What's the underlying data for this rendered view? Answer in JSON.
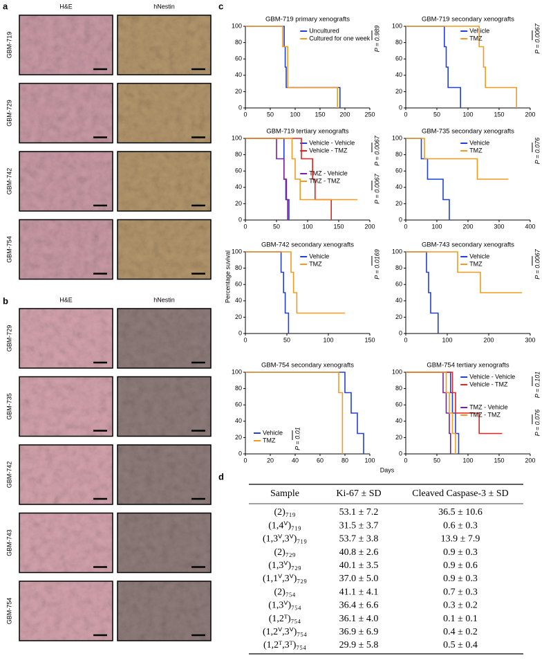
{
  "histology_a": {
    "label": "a",
    "columns": [
      "H&E",
      "hNestin"
    ],
    "rows": [
      "GBM-719",
      "GBM-729",
      "GBM-742",
      "GBM-754"
    ]
  },
  "histology_b": {
    "label": "b",
    "columns": [
      "H&E",
      "hNestin"
    ],
    "rows": [
      "GBM-729",
      "GBM-735",
      "GBM-742",
      "GBM-743",
      "GBM-754"
    ]
  },
  "panel_c_label": "c",
  "y_label": "Percentage suvival",
  "x_label": "Days",
  "chart_data": [
    {
      "type": "step",
      "title": "GBM-719 primary xenografts",
      "xlim": [
        0,
        250
      ],
      "xticks": [
        0,
        50,
        100,
        150,
        200,
        250
      ],
      "ylim": [
        0,
        100
      ],
      "yticks": [
        0,
        20,
        40,
        60,
        80,
        100
      ],
      "legend": "upper right",
      "annotations": [
        "P = 0.989"
      ],
      "series": [
        {
          "name": "Uncultured",
          "color": "#1f3fd6",
          "x": [
            0,
            78,
            80,
            82,
            190
          ],
          "values": [
            100,
            75,
            50,
            25,
            0
          ]
        },
        {
          "name": "Cultured for one week",
          "color": "#f39a1e",
          "x": [
            0,
            75,
            85,
            185
          ],
          "values": [
            100,
            75,
            25,
            0
          ]
        }
      ]
    },
    {
      "type": "step",
      "title": "GBM-719 secondary xenografts",
      "xlim": [
        0,
        200
      ],
      "xticks": [
        0,
        50,
        100,
        150,
        200
      ],
      "ylim": [
        0,
        100
      ],
      "yticks": [
        0,
        20,
        40,
        60,
        80,
        100
      ],
      "legend": "upper right",
      "annotations": [
        "P = 0.0067"
      ],
      "series": [
        {
          "name": "Vehicle",
          "color": "#1f3fd6",
          "x": [
            0,
            62,
            65,
            68,
            88
          ],
          "values": [
            100,
            75,
            50,
            25,
            0
          ]
        },
        {
          "name": "TMZ",
          "color": "#f39a1e",
          "x": [
            0,
            118,
            125,
            128,
            178
          ],
          "values": [
            100,
            75,
            50,
            25,
            0
          ]
        }
      ]
    },
    {
      "type": "step",
      "title": "GBM-719 tertiary xenografts",
      "xlim": [
        0,
        200
      ],
      "xticks": [
        0,
        50,
        100,
        150,
        200
      ],
      "ylim": [
        0,
        100
      ],
      "yticks": [
        0,
        20,
        40,
        60,
        80,
        100
      ],
      "legend": "upper right",
      "annotations": [
        "P = 0.0067",
        "P = 0.0067"
      ],
      "series": [
        {
          "name": "Vehicle - Vehicle",
          "color": "#1f3fd6",
          "x": [
            0,
            62,
            65,
            70
          ],
          "values": [
            100,
            50,
            25,
            0
          ]
        },
        {
          "name": "Vehicle - TMZ",
          "color": "#e8201c",
          "x": [
            0,
            90,
            108,
            112,
            138
          ],
          "values": [
            100,
            75,
            50,
            25,
            0
          ]
        },
        {
          "name": "TMZ - Vehicle",
          "color": "#7b1fa2",
          "x": [
            0,
            50,
            62,
            66,
            68
          ],
          "values": [
            100,
            75,
            50,
            25,
            0
          ]
        },
        {
          "name": "TMZ - TMZ",
          "color": "#f39a1e",
          "x": [
            0,
            75,
            80,
            88,
            180
          ],
          "values": [
            100,
            75,
            50,
            25,
            25
          ]
        }
      ]
    },
    {
      "type": "step",
      "title": "GBM-735 secondary xenografts",
      "xlim": [
        0,
        400
      ],
      "xticks": [
        0,
        100,
        200,
        300,
        400
      ],
      "ylim": [
        0,
        100
      ],
      "yticks": [
        0,
        20,
        40,
        60,
        80,
        100
      ],
      "legend": "upper right",
      "annotations": [
        "P = 0.076"
      ],
      "series": [
        {
          "name": "Vehicle",
          "color": "#1f3fd6",
          "x": [
            0,
            50,
            70,
            120,
            140
          ],
          "values": [
            100,
            75,
            50,
            25,
            0
          ]
        },
        {
          "name": "TMZ",
          "color": "#f39a1e",
          "x": [
            0,
            60,
            230,
            330
          ],
          "values": [
            100,
            75,
            50,
            50
          ]
        }
      ]
    },
    {
      "type": "step",
      "title": "GBM-742 secondary xenografts",
      "xlim": [
        0,
        150
      ],
      "xticks": [
        0,
        50,
        100,
        150
      ],
      "ylim": [
        0,
        100
      ],
      "yticks": [
        0,
        20,
        40,
        60,
        80,
        100
      ],
      "legend": "upper right",
      "annotations": [
        "P = 0.0169"
      ],
      "series": [
        {
          "name": "Vehicle",
          "color": "#1f3fd6",
          "x": [
            0,
            43,
            46,
            48,
            52
          ],
          "values": [
            100,
            75,
            50,
            25,
            0
          ]
        },
        {
          "name": "TMZ",
          "color": "#f39a1e",
          "x": [
            0,
            55,
            58,
            62,
            120
          ],
          "values": [
            100,
            75,
            50,
            25,
            25
          ]
        }
      ]
    },
    {
      "type": "step",
      "title": "GBM-743 secondary xenografts",
      "xlim": [
        0,
        300
      ],
      "xticks": [
        0,
        100,
        200,
        300
      ],
      "ylim": [
        0,
        100
      ],
      "yticks": [
        0,
        20,
        40,
        60,
        80,
        100
      ],
      "legend": "upper right",
      "annotations": [
        "P = 0.0067"
      ],
      "series": [
        {
          "name": "Vehicle",
          "color": "#1f3fd6",
          "x": [
            0,
            50,
            55,
            60,
            78
          ],
          "values": [
            100,
            75,
            50,
            25,
            0
          ]
        },
        {
          "name": "TMZ",
          "color": "#f39a1e",
          "x": [
            0,
            125,
            180,
            280
          ],
          "values": [
            100,
            75,
            50,
            50
          ]
        }
      ]
    },
    {
      "type": "step",
      "title": "GBM-754 secondary xenografts",
      "xlim": [
        0,
        100
      ],
      "xticks": [
        0,
        20,
        40,
        60,
        80,
        100
      ],
      "ylim": [
        0,
        100
      ],
      "yticks": [
        0,
        20,
        40,
        60,
        80,
        100
      ],
      "legend": "lower left",
      "annotations": [
        "P = 0.01"
      ],
      "series": [
        {
          "name": "Vehicle",
          "color": "#1f3fd6",
          "x": [
            0,
            80,
            85,
            90,
            95
          ],
          "values": [
            100,
            75,
            50,
            25,
            0
          ]
        },
        {
          "name": "TMZ",
          "color": "#f39a1e",
          "x": [
            0,
            75,
            78
          ],
          "values": [
            100,
            75,
            0
          ]
        }
      ]
    },
    {
      "type": "step",
      "title": "GBM-754 tertiary xenografts",
      "xlim": [
        0,
        200
      ],
      "xticks": [
        0,
        50,
        100,
        150,
        200
      ],
      "ylim": [
        0,
        100
      ],
      "yticks": [
        0,
        20,
        40,
        60,
        80,
        100
      ],
      "legend": "upper right",
      "annotations": [
        "P = 0.101",
        "P = 0.076"
      ],
      "series": [
        {
          "name": "Vehicle - Vehicle",
          "color": "#1f3fd6",
          "x": [
            0,
            72,
            75,
            80,
            85
          ],
          "values": [
            100,
            75,
            50,
            25,
            0
          ]
        },
        {
          "name": "Vehicle - TMZ",
          "color": "#e8201c",
          "x": [
            0,
            75,
            80,
            118,
            155
          ],
          "values": [
            100,
            75,
            50,
            25,
            25
          ]
        },
        {
          "name": "TMZ - Vehicle",
          "color": "#7b1fa2",
          "x": [
            0,
            60,
            65,
            70,
            72
          ],
          "values": [
            100,
            75,
            50,
            25,
            0
          ]
        },
        {
          "name": "TMZ - TMZ",
          "color": "#f39a1e",
          "x": [
            0,
            65,
            70,
            75,
            80
          ],
          "values": [
            100,
            75,
            50,
            25,
            0
          ]
        }
      ]
    }
  ],
  "table": {
    "label": "d",
    "header": [
      "Sample",
      "Ki-67 ± SD",
      "Cleaved Caspase-3 ± SD"
    ],
    "rows": [
      [
        "(2)₇₁₉",
        "53.1 ± 7.2",
        "36.5 ± 10.6"
      ],
      [
        "(1,4ⱽ)₇₁₉",
        "31.5 ± 3.7",
        "0.6 ± 0.3"
      ],
      [
        "(1,3ⱽ,3ⱽ)₇₁₉",
        "53.7 ± 3.8",
        "13.9 ± 7.9"
      ],
      [
        "(2)₇₂₉",
        "40.8 ± 2.6",
        "0.9 ± 0.3"
      ],
      [
        "(1,3ⱽ)₇₂₉",
        "40.1 ± 3.5",
        "0.9 ± 0.6"
      ],
      [
        "(1,1ⱽ,3ⱽ)₇₂₉",
        "37.0 ± 5.0",
        "0.9 ± 0.3"
      ],
      [
        "(2)₇₅₄",
        "41.1 ± 4.1",
        "0.7 ± 0.3"
      ],
      [
        "(1,3ⱽ)₇₅₄",
        "36.4 ± 6.6",
        "0.3 ± 0.2"
      ],
      [
        "(1,2ᵀ)₇₅₄",
        "36.1 ± 4.0",
        "0.1 ± 0.1"
      ],
      [
        "(1,2ⱽ,3ⱽ)₇₅₄",
        "36.9 ± 6.9",
        "0.4 ± 0.2"
      ],
      [
        "(1,2ᵀ,3ᵀ)₇₅₄",
        "29.9 ± 5.8",
        "0.5 ± 0.4"
      ]
    ]
  }
}
